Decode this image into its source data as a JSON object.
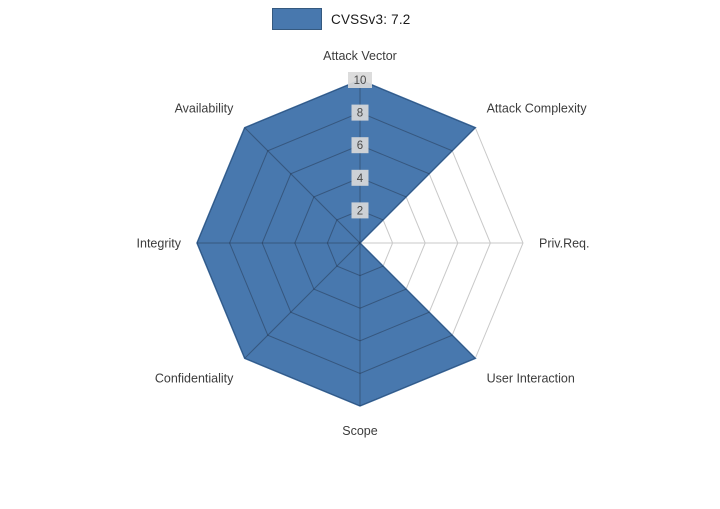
{
  "legend": {
    "label": "CVSSv3: 7.2",
    "swatch_color": "#4878ae"
  },
  "chart_data": {
    "type": "radar",
    "title": "CVSSv3: 7.2",
    "categories": [
      "Attack Vector",
      "Attack Complexity",
      "Priv.Req.",
      "User Interaction",
      "Scope",
      "Confidentiality",
      "Integrity",
      "Availability"
    ],
    "series": [
      {
        "name": "CVSSv3: 7.2",
        "values": [
          10,
          10,
          0,
          10,
          10,
          10,
          10,
          10
        ]
      }
    ],
    "ticks": [
      2,
      4,
      6,
      8,
      10
    ],
    "rmax": 10,
    "fill_color": "#4878ae",
    "edge_color": "#3a699e",
    "grid_color": "#c9c9c9",
    "inner_grid_color": "rgba(25,35,50,0.38)",
    "tick_box_color": "#d9d9d9",
    "tick_text_color": "#4a4a4a",
    "label_color": "#3c3c3c",
    "legend_position": "top-center",
    "grid": true
  }
}
